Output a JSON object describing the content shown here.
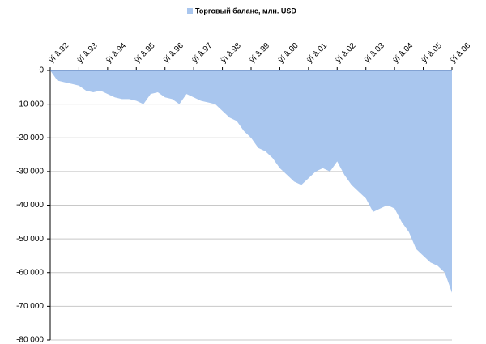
{
  "chart_data": {
    "type": "area",
    "categories": [
      "ÿí â.92",
      null,
      null,
      null,
      "ÿí â.93",
      null,
      null,
      null,
      "ÿí â.94",
      null,
      null,
      null,
      "ÿí â.95",
      null,
      null,
      null,
      "ÿí â.96",
      null,
      null,
      null,
      "ÿí â.97",
      null,
      null,
      null,
      "ÿí â.98",
      null,
      null,
      null,
      "ÿí â.99",
      null,
      null,
      null,
      "ÿí â.00",
      null,
      null,
      null,
      "ÿí â.01",
      null,
      null,
      null,
      "ÿí â.02",
      null,
      null,
      null,
      "ÿí â.03",
      null,
      null,
      null,
      "ÿí â.04",
      null,
      null,
      null,
      "ÿí â.05",
      null,
      null,
      null,
      "ÿí â.06"
    ],
    "series": [
      {
        "name": "Торговый баланс, млн. USD",
        "color": "#a9c6ee",
        "values": [
          0,
          -3000,
          -3500,
          -4000,
          -4500,
          -6000,
          -6500,
          -6000,
          -7000,
          -8000,
          -8500,
          -8500,
          -9000,
          -10000,
          -7000,
          -6500,
          -8000,
          -8500,
          -10000,
          -7000,
          -8000,
          -9000,
          -9500,
          -10000,
          -12000,
          -14000,
          -15000,
          -18000,
          -20000,
          -23000,
          -24000,
          -26000,
          -29000,
          -31000,
          -33000,
          -34000,
          -32000,
          -30000,
          -29000,
          -30000,
          -27000,
          -31000,
          -34000,
          -36000,
          -38000,
          -42000,
          -41000,
          -40000,
          -41000,
          -45000,
          -48000,
          -53000,
          -55000,
          -57000,
          -58000,
          -60000,
          -66000
        ]
      }
    ],
    "ylim": [
      -80000,
      0
    ],
    "yticks": [
      0,
      {
        "value": -10000,
        "label": "-10 000"
      },
      {
        "value": -20000,
        "label": "-20 000"
      },
      {
        "value": -30000,
        "label": "-30 000"
      },
      {
        "value": -40000,
        "label": "-40 000"
      },
      {
        "value": -50000,
        "label": "-50 000"
      },
      {
        "value": -60000,
        "label": "-60 000"
      },
      {
        "value": -70000,
        "label": "-70 000"
      },
      {
        "value": -80000,
        "label": "-80 000"
      }
    ],
    "grid": true,
    "legend": "top"
  }
}
